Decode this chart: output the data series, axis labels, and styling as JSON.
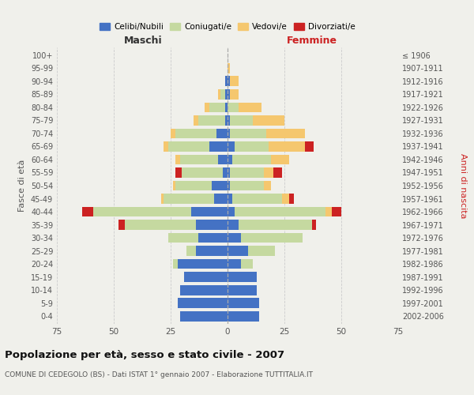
{
  "age_groups": [
    "0-4",
    "5-9",
    "10-14",
    "15-19",
    "20-24",
    "25-29",
    "30-34",
    "35-39",
    "40-44",
    "45-49",
    "50-54",
    "55-59",
    "60-64",
    "65-69",
    "70-74",
    "75-79",
    "80-84",
    "85-89",
    "90-94",
    "95-99",
    "100+"
  ],
  "birth_years": [
    "2002-2006",
    "1997-2001",
    "1992-1996",
    "1987-1991",
    "1982-1986",
    "1977-1981",
    "1972-1976",
    "1967-1971",
    "1962-1966",
    "1957-1961",
    "1952-1956",
    "1947-1951",
    "1942-1946",
    "1937-1941",
    "1932-1936",
    "1927-1931",
    "1922-1926",
    "1917-1921",
    "1912-1916",
    "1907-1911",
    "≤ 1906"
  ],
  "colors": {
    "celibi": "#4472C4",
    "coniugati": "#C5D9A0",
    "vedovi": "#F5C76E",
    "divorziati": "#CC2222"
  },
  "maschi": {
    "celibi": [
      21,
      22,
      21,
      19,
      22,
      14,
      13,
      14,
      16,
      6,
      7,
      2,
      4,
      8,
      5,
      1,
      1,
      1,
      1,
      0,
      0
    ],
    "coniugati": [
      0,
      0,
      0,
      0,
      2,
      4,
      13,
      31,
      43,
      22,
      16,
      18,
      17,
      18,
      18,
      12,
      7,
      2,
      0,
      0,
      0
    ],
    "vedovi": [
      0,
      0,
      0,
      0,
      0,
      0,
      0,
      0,
      0,
      1,
      1,
      0,
      2,
      2,
      2,
      2,
      2,
      1,
      0,
      0,
      0
    ],
    "divorziati": [
      0,
      0,
      0,
      0,
      0,
      0,
      0,
      3,
      5,
      0,
      0,
      3,
      0,
      0,
      0,
      0,
      0,
      0,
      0,
      0,
      0
    ]
  },
  "femmine": {
    "nubili": [
      14,
      14,
      13,
      13,
      6,
      9,
      6,
      5,
      3,
      2,
      1,
      1,
      2,
      3,
      1,
      1,
      0,
      1,
      1,
      0,
      0
    ],
    "coniugate": [
      0,
      0,
      0,
      0,
      5,
      12,
      27,
      32,
      40,
      22,
      15,
      15,
      17,
      15,
      16,
      10,
      5,
      0,
      0,
      0,
      0
    ],
    "vedove": [
      0,
      0,
      0,
      0,
      0,
      0,
      0,
      0,
      3,
      3,
      3,
      4,
      8,
      16,
      17,
      14,
      10,
      4,
      4,
      1,
      0
    ],
    "divorziate": [
      0,
      0,
      0,
      0,
      0,
      0,
      0,
      2,
      4,
      2,
      0,
      4,
      0,
      4,
      0,
      0,
      0,
      0,
      0,
      0,
      0
    ]
  },
  "xlim": 75,
  "title": "Popolazione per età, sesso e stato civile - 2007",
  "subtitle": "COMUNE DI CEDEGOLO (BS) - Dati ISTAT 1° gennaio 2007 - Elaborazione TUTTITALIA.IT",
  "ylabel_left": "Fasce di età",
  "ylabel_right": "Anni di nascita",
  "xlabel_left": "Maschi",
  "xlabel_right": "Femmine",
  "background_color": "#f0f0eb"
}
